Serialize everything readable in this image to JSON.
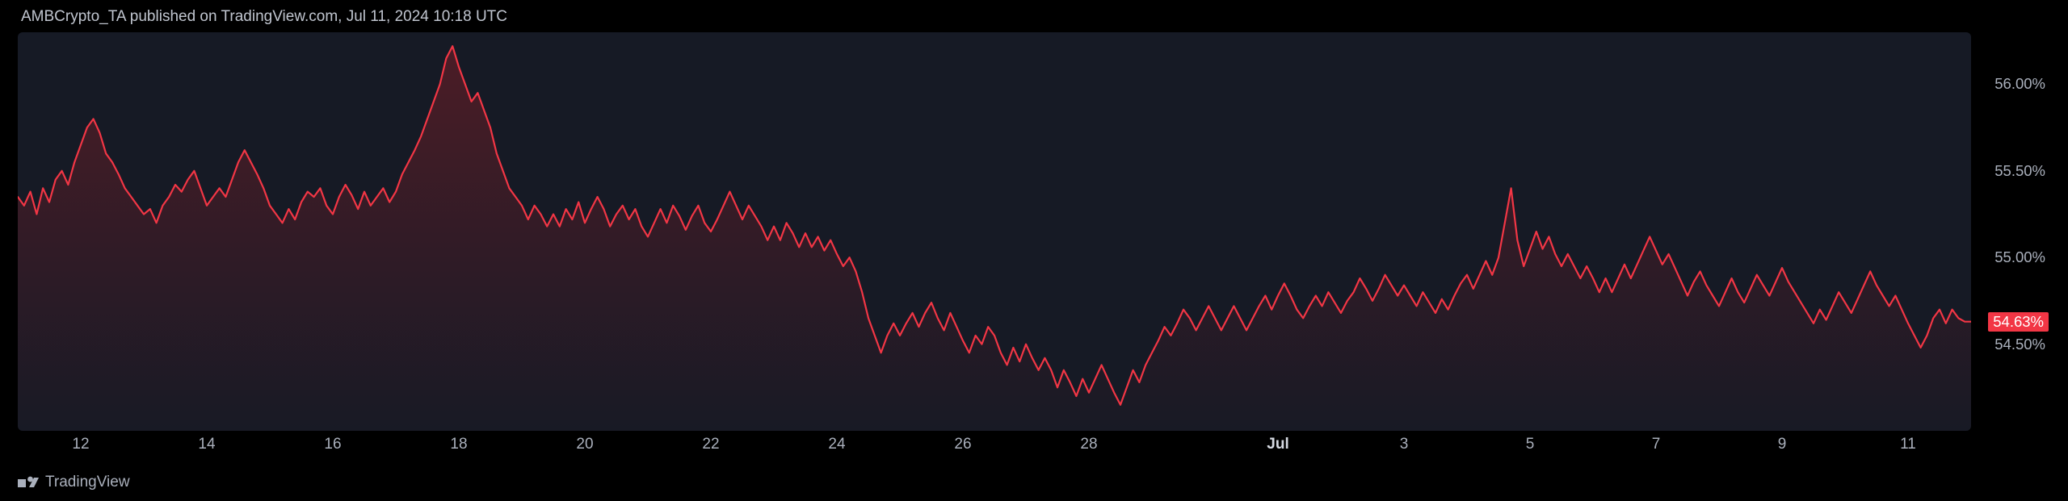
{
  "header": {
    "text": "AMBCrypto_TA published on TradingView.com, Jul 11, 2024 10:18 UTC"
  },
  "footer": {
    "brand": "TradingView"
  },
  "chart": {
    "type": "area",
    "background_color": "#161a25",
    "page_background": "#000000",
    "line_color": "#f23645",
    "line_width": 2.2,
    "fill_top": "rgba(120,30,40,0.55)",
    "fill_bottom": "rgba(120,30,40,0.02)",
    "axis_text_color": "#aab0bc",
    "axis_fontsize": 18.5,
    "current_value": 54.63,
    "current_label": "54.63%",
    "price_tag_bg": "#f23645",
    "price_tag_text": "#ffffff",
    "y": {
      "min": 54.0,
      "max": 56.3,
      "ticks": [
        {
          "v": 56.0,
          "label": "56.00%"
        },
        {
          "v": 55.5,
          "label": "55.50%"
        },
        {
          "v": 55.0,
          "label": "55.00%"
        },
        {
          "v": 54.5,
          "label": "54.50%"
        }
      ]
    },
    "x": {
      "min": 11,
      "max": 42,
      "ticks": [
        {
          "v": 12,
          "label": "12",
          "bold": false
        },
        {
          "v": 14,
          "label": "14",
          "bold": false
        },
        {
          "v": 16,
          "label": "16",
          "bold": false
        },
        {
          "v": 18,
          "label": "18",
          "bold": false
        },
        {
          "v": 20,
          "label": "20",
          "bold": false
        },
        {
          "v": 22,
          "label": "22",
          "bold": false
        },
        {
          "v": 24,
          "label": "24",
          "bold": false
        },
        {
          "v": 26,
          "label": "26",
          "bold": false
        },
        {
          "v": 28,
          "label": "28",
          "bold": false
        },
        {
          "v": 31,
          "label": "Jul",
          "bold": true
        },
        {
          "v": 33,
          "label": "3",
          "bold": false
        },
        {
          "v": 35,
          "label": "5",
          "bold": false
        },
        {
          "v": 37,
          "label": "7",
          "bold": false
        },
        {
          "v": 39,
          "label": "9",
          "bold": false
        },
        {
          "v": 41,
          "label": "11",
          "bold": false
        }
      ]
    },
    "series": [
      [
        11.0,
        55.35
      ],
      [
        11.1,
        55.3
      ],
      [
        11.2,
        55.38
      ],
      [
        11.3,
        55.25
      ],
      [
        11.4,
        55.4
      ],
      [
        11.5,
        55.32
      ],
      [
        11.6,
        55.45
      ],
      [
        11.7,
        55.5
      ],
      [
        11.8,
        55.42
      ],
      [
        11.9,
        55.55
      ],
      [
        12.0,
        55.65
      ],
      [
        12.1,
        55.75
      ],
      [
        12.2,
        55.8
      ],
      [
        12.3,
        55.72
      ],
      [
        12.4,
        55.6
      ],
      [
        12.5,
        55.55
      ],
      [
        12.6,
        55.48
      ],
      [
        12.7,
        55.4
      ],
      [
        12.8,
        55.35
      ],
      [
        12.9,
        55.3
      ],
      [
        13.0,
        55.25
      ],
      [
        13.1,
        55.28
      ],
      [
        13.2,
        55.2
      ],
      [
        13.3,
        55.3
      ],
      [
        13.4,
        55.35
      ],
      [
        13.5,
        55.42
      ],
      [
        13.6,
        55.38
      ],
      [
        13.7,
        55.45
      ],
      [
        13.8,
        55.5
      ],
      [
        13.9,
        55.4
      ],
      [
        14.0,
        55.3
      ],
      [
        14.1,
        55.35
      ],
      [
        14.2,
        55.4
      ],
      [
        14.3,
        55.35
      ],
      [
        14.4,
        55.45
      ],
      [
        14.5,
        55.55
      ],
      [
        14.6,
        55.62
      ],
      [
        14.7,
        55.55
      ],
      [
        14.8,
        55.48
      ],
      [
        14.9,
        55.4
      ],
      [
        15.0,
        55.3
      ],
      [
        15.1,
        55.25
      ],
      [
        15.2,
        55.2
      ],
      [
        15.3,
        55.28
      ],
      [
        15.4,
        55.22
      ],
      [
        15.5,
        55.32
      ],
      [
        15.6,
        55.38
      ],
      [
        15.7,
        55.35
      ],
      [
        15.8,
        55.4
      ],
      [
        15.9,
        55.3
      ],
      [
        16.0,
        55.25
      ],
      [
        16.1,
        55.35
      ],
      [
        16.2,
        55.42
      ],
      [
        16.3,
        55.36
      ],
      [
        16.4,
        55.28
      ],
      [
        16.5,
        55.38
      ],
      [
        16.6,
        55.3
      ],
      [
        16.7,
        55.35
      ],
      [
        16.8,
        55.4
      ],
      [
        16.9,
        55.32
      ],
      [
        17.0,
        55.38
      ],
      [
        17.1,
        55.48
      ],
      [
        17.2,
        55.55
      ],
      [
        17.3,
        55.62
      ],
      [
        17.4,
        55.7
      ],
      [
        17.5,
        55.8
      ],
      [
        17.6,
        55.9
      ],
      [
        17.7,
        56.0
      ],
      [
        17.8,
        56.15
      ],
      [
        17.9,
        56.22
      ],
      [
        18.0,
        56.1
      ],
      [
        18.1,
        56.0
      ],
      [
        18.2,
        55.9
      ],
      [
        18.3,
        55.95
      ],
      [
        18.4,
        55.85
      ],
      [
        18.5,
        55.75
      ],
      [
        18.6,
        55.6
      ],
      [
        18.7,
        55.5
      ],
      [
        18.8,
        55.4
      ],
      [
        18.9,
        55.35
      ],
      [
        19.0,
        55.3
      ],
      [
        19.1,
        55.22
      ],
      [
        19.2,
        55.3
      ],
      [
        19.3,
        55.25
      ],
      [
        19.4,
        55.18
      ],
      [
        19.5,
        55.25
      ],
      [
        19.6,
        55.18
      ],
      [
        19.7,
        55.28
      ],
      [
        19.8,
        55.22
      ],
      [
        19.9,
        55.32
      ],
      [
        20.0,
        55.2
      ],
      [
        20.1,
        55.28
      ],
      [
        20.2,
        55.35
      ],
      [
        20.3,
        55.28
      ],
      [
        20.4,
        55.18
      ],
      [
        20.5,
        55.25
      ],
      [
        20.6,
        55.3
      ],
      [
        20.7,
        55.22
      ],
      [
        20.8,
        55.28
      ],
      [
        20.9,
        55.18
      ],
      [
        21.0,
        55.12
      ],
      [
        21.1,
        55.2
      ],
      [
        21.2,
        55.28
      ],
      [
        21.3,
        55.2
      ],
      [
        21.4,
        55.3
      ],
      [
        21.5,
        55.24
      ],
      [
        21.6,
        55.16
      ],
      [
        21.7,
        55.24
      ],
      [
        21.8,
        55.3
      ],
      [
        21.9,
        55.2
      ],
      [
        22.0,
        55.15
      ],
      [
        22.1,
        55.22
      ],
      [
        22.2,
        55.3
      ],
      [
        22.3,
        55.38
      ],
      [
        22.4,
        55.3
      ],
      [
        22.5,
        55.22
      ],
      [
        22.6,
        55.3
      ],
      [
        22.7,
        55.24
      ],
      [
        22.8,
        55.18
      ],
      [
        22.9,
        55.1
      ],
      [
        23.0,
        55.18
      ],
      [
        23.1,
        55.1
      ],
      [
        23.2,
        55.2
      ],
      [
        23.3,
        55.14
      ],
      [
        23.4,
        55.06
      ],
      [
        23.5,
        55.14
      ],
      [
        23.6,
        55.06
      ],
      [
        23.7,
        55.12
      ],
      [
        23.8,
        55.04
      ],
      [
        23.9,
        55.1
      ],
      [
        24.0,
        55.02
      ],
      [
        24.1,
        54.95
      ],
      [
        24.2,
        55.0
      ],
      [
        24.3,
        54.92
      ],
      [
        24.4,
        54.8
      ],
      [
        24.5,
        54.65
      ],
      [
        24.6,
        54.55
      ],
      [
        24.7,
        54.45
      ],
      [
        24.8,
        54.55
      ],
      [
        24.9,
        54.62
      ],
      [
        25.0,
        54.55
      ],
      [
        25.1,
        54.62
      ],
      [
        25.2,
        54.68
      ],
      [
        25.3,
        54.6
      ],
      [
        25.4,
        54.68
      ],
      [
        25.5,
        54.74
      ],
      [
        25.6,
        54.65
      ],
      [
        25.7,
        54.58
      ],
      [
        25.8,
        54.68
      ],
      [
        25.9,
        54.6
      ],
      [
        26.0,
        54.52
      ],
      [
        26.1,
        54.45
      ],
      [
        26.2,
        54.55
      ],
      [
        26.3,
        54.5
      ],
      [
        26.4,
        54.6
      ],
      [
        26.5,
        54.55
      ],
      [
        26.6,
        54.45
      ],
      [
        26.7,
        54.38
      ],
      [
        26.8,
        54.48
      ],
      [
        26.9,
        54.4
      ],
      [
        27.0,
        54.5
      ],
      [
        27.1,
        54.42
      ],
      [
        27.2,
        54.35
      ],
      [
        27.3,
        54.42
      ],
      [
        27.4,
        54.35
      ],
      [
        27.5,
        54.25
      ],
      [
        27.6,
        54.35
      ],
      [
        27.7,
        54.28
      ],
      [
        27.8,
        54.2
      ],
      [
        27.9,
        54.3
      ],
      [
        28.0,
        54.22
      ],
      [
        28.1,
        54.3
      ],
      [
        28.2,
        54.38
      ],
      [
        28.3,
        54.3
      ],
      [
        28.4,
        54.22
      ],
      [
        28.5,
        54.15
      ],
      [
        28.6,
        54.25
      ],
      [
        28.7,
        54.35
      ],
      [
        28.8,
        54.28
      ],
      [
        28.9,
        54.38
      ],
      [
        29.0,
        54.45
      ],
      [
        29.1,
        54.52
      ],
      [
        29.2,
        54.6
      ],
      [
        29.3,
        54.55
      ],
      [
        29.4,
        54.62
      ],
      [
        29.5,
        54.7
      ],
      [
        29.6,
        54.65
      ],
      [
        29.7,
        54.58
      ],
      [
        29.8,
        54.65
      ],
      [
        29.9,
        54.72
      ],
      [
        30.0,
        54.65
      ],
      [
        30.1,
        54.58
      ],
      [
        30.2,
        54.65
      ],
      [
        30.3,
        54.72
      ],
      [
        30.4,
        54.65
      ],
      [
        30.5,
        54.58
      ],
      [
        30.6,
        54.65
      ],
      [
        30.7,
        54.72
      ],
      [
        30.8,
        54.78
      ],
      [
        30.9,
        54.7
      ],
      [
        31.0,
        54.78
      ],
      [
        31.1,
        54.85
      ],
      [
        31.2,
        54.78
      ],
      [
        31.3,
        54.7
      ],
      [
        31.4,
        54.65
      ],
      [
        31.5,
        54.72
      ],
      [
        31.6,
        54.78
      ],
      [
        31.7,
        54.72
      ],
      [
        31.8,
        54.8
      ],
      [
        31.9,
        54.74
      ],
      [
        32.0,
        54.68
      ],
      [
        32.1,
        54.75
      ],
      [
        32.2,
        54.8
      ],
      [
        32.3,
        54.88
      ],
      [
        32.4,
        54.82
      ],
      [
        32.5,
        54.75
      ],
      [
        32.6,
        54.82
      ],
      [
        32.7,
        54.9
      ],
      [
        32.8,
        54.84
      ],
      [
        32.9,
        54.78
      ],
      [
        33.0,
        54.84
      ],
      [
        33.1,
        54.78
      ],
      [
        33.2,
        54.72
      ],
      [
        33.3,
        54.8
      ],
      [
        33.4,
        54.74
      ],
      [
        33.5,
        54.68
      ],
      [
        33.6,
        54.76
      ],
      [
        33.7,
        54.7
      ],
      [
        33.8,
        54.78
      ],
      [
        33.9,
        54.85
      ],
      [
        34.0,
        54.9
      ],
      [
        34.1,
        54.82
      ],
      [
        34.2,
        54.9
      ],
      [
        34.3,
        54.98
      ],
      [
        34.4,
        54.9
      ],
      [
        34.5,
        55.0
      ],
      [
        34.6,
        55.2
      ],
      [
        34.7,
        55.4
      ],
      [
        34.8,
        55.1
      ],
      [
        34.9,
        54.95
      ],
      [
        35.0,
        55.05
      ],
      [
        35.1,
        55.15
      ],
      [
        35.2,
        55.05
      ],
      [
        35.3,
        55.12
      ],
      [
        35.4,
        55.02
      ],
      [
        35.5,
        54.95
      ],
      [
        35.6,
        55.02
      ],
      [
        35.7,
        54.95
      ],
      [
        35.8,
        54.88
      ],
      [
        35.9,
        54.95
      ],
      [
        36.0,
        54.88
      ],
      [
        36.1,
        54.8
      ],
      [
        36.2,
        54.88
      ],
      [
        36.3,
        54.8
      ],
      [
        36.4,
        54.88
      ],
      [
        36.5,
        54.96
      ],
      [
        36.6,
        54.88
      ],
      [
        36.7,
        54.96
      ],
      [
        36.8,
        55.04
      ],
      [
        36.9,
        55.12
      ],
      [
        37.0,
        55.04
      ],
      [
        37.1,
        54.96
      ],
      [
        37.2,
        55.02
      ],
      [
        37.3,
        54.94
      ],
      [
        37.4,
        54.86
      ],
      [
        37.5,
        54.78
      ],
      [
        37.6,
        54.86
      ],
      [
        37.7,
        54.92
      ],
      [
        37.8,
        54.84
      ],
      [
        37.9,
        54.78
      ],
      [
        38.0,
        54.72
      ],
      [
        38.1,
        54.8
      ],
      [
        38.2,
        54.88
      ],
      [
        38.3,
        54.8
      ],
      [
        38.4,
        54.74
      ],
      [
        38.5,
        54.82
      ],
      [
        38.6,
        54.9
      ],
      [
        38.7,
        54.84
      ],
      [
        38.8,
        54.78
      ],
      [
        38.9,
        54.86
      ],
      [
        39.0,
        54.94
      ],
      [
        39.1,
        54.86
      ],
      [
        39.2,
        54.8
      ],
      [
        39.3,
        54.74
      ],
      [
        39.4,
        54.68
      ],
      [
        39.5,
        54.62
      ],
      [
        39.6,
        54.7
      ],
      [
        39.7,
        54.64
      ],
      [
        39.8,
        54.72
      ],
      [
        39.9,
        54.8
      ],
      [
        40.0,
        54.74
      ],
      [
        40.1,
        54.68
      ],
      [
        40.2,
        54.76
      ],
      [
        40.3,
        54.84
      ],
      [
        40.4,
        54.92
      ],
      [
        40.5,
        54.84
      ],
      [
        40.6,
        54.78
      ],
      [
        40.7,
        54.72
      ],
      [
        40.8,
        54.78
      ],
      [
        40.9,
        54.7
      ],
      [
        41.0,
        54.62
      ],
      [
        41.1,
        54.55
      ],
      [
        41.2,
        54.48
      ],
      [
        41.3,
        54.55
      ],
      [
        41.4,
        54.65
      ],
      [
        41.5,
        54.7
      ],
      [
        41.6,
        54.62
      ],
      [
        41.7,
        54.7
      ],
      [
        41.8,
        54.65
      ],
      [
        41.9,
        54.63
      ],
      [
        42.0,
        54.63
      ]
    ]
  }
}
